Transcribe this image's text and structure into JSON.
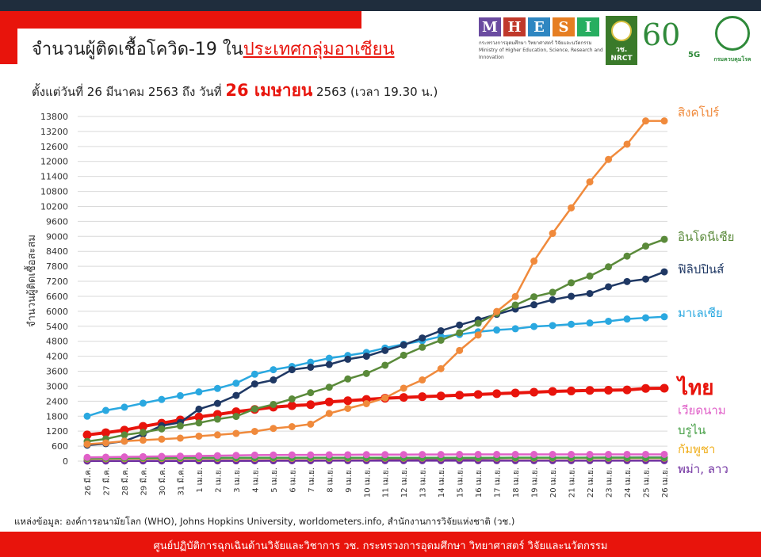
{
  "header": {
    "title_prefix": "จำนวนผู้ติดเชื้อโควิด-19 ใน",
    "title_highlight": "ประเทศกลุ่มอาเซียน",
    "subtitle_prefix": "ตั้งแต่วันที่ 26 มีนาคม 2563 ถึง วันที่",
    "subtitle_date": "26 เมษายน",
    "subtitle_suffix": "2563 (เวลา 19.30 น.)"
  },
  "logos": {
    "mhesi_letters": [
      "M",
      "H",
      "E",
      "S",
      "I"
    ],
    "mhesi_colors": [
      "#6a4ba0",
      "#c0392b",
      "#2e86c1",
      "#e67e22",
      "#27ae60"
    ],
    "mhesi_caption": "กระทรวงการอุดมศึกษา วิทยาศาสตร์ วิจัยและนวัตกรรม Ministry of Higher Education, Science, Research and Innovation",
    "nrct_text": "วช. NRCT",
    "sixty": "60",
    "fiveg": "5G",
    "moph_text": "กรมควบคุมโรค"
  },
  "source": "แหล่งข้อมูล: องค์การอนามัยโลก (WHO), Johns Hopkins University, worldometers.info, สำนักงานการวิจัยแห่งชาติ (วช.)",
  "footer": "ศูนย์ปฏิบัติการฉุกเฉินด้านวิจัยและวิชาการ   วช.   กระทรวงการอุดมศึกษา วิทยาศาสตร์ วิจัยและนวัตกรรม",
  "chart_data": {
    "type": "line",
    "ylabel": "จำนวนผู้ติดเชื้อสะสม",
    "ylim": [
      0,
      13800
    ],
    "yticks": [
      0,
      600,
      1200,
      1800,
      2400,
      3000,
      3600,
      4200,
      4800,
      5400,
      6000,
      6600,
      7200,
      7800,
      8400,
      9000,
      9600,
      10200,
      10800,
      11400,
      12000,
      12600,
      13200,
      13800
    ],
    "grid": true,
    "categories": [
      "26 มี.ค.",
      "27 มี.ค.",
      "28 มี.ค.",
      "29 มี.ค.",
      "30 มี.ค.",
      "31 มี.ค.",
      "1 เม.ย.",
      "2 เม.ย.",
      "3 เม.ย.",
      "4 เม.ย.",
      "5 เม.ย.",
      "6 เม.ย.",
      "7 เม.ย.",
      "8 เม.ย.",
      "9 เม.ย.",
      "10 เม.ย.",
      "11 เม.ย.",
      "12 เม.ย.",
      "13 เม.ย.",
      "14 เม.ย.",
      "15 เม.ย.",
      "16 เม.ย.",
      "17 เม.ย.",
      "18 เม.ย.",
      "19 เม.ย.",
      "20 เม.ย.",
      "21 เม.ย.",
      "22 เม.ย.",
      "23 เม.ย.",
      "24 เม.ย.",
      "25 เม.ย.",
      "26 เม.ย."
    ],
    "series": [
      {
        "name": "สิงคโปร์",
        "color": "#f08a3c",
        "values": [
          680,
          730,
          800,
          840,
          880,
          920,
          1000,
          1050,
          1110,
          1190,
          1310,
          1380,
          1480,
          1910,
          2110,
          2300,
          2530,
          2920,
          3250,
          3700,
          4430,
          5050,
          5990,
          6590,
          8010,
          9120,
          10140,
          11180,
          12080,
          12690,
          13620,
          13620
        ]
      },
      {
        "name": "อินโดนีเซีย",
        "color": "#5a8a3a",
        "values": [
          790,
          890,
          1050,
          1150,
          1290,
          1410,
          1530,
          1680,
          1790,
          2090,
          2270,
          2490,
          2740,
          2960,
          3290,
          3510,
          3840,
          4240,
          4560,
          4840,
          5140,
          5520,
          5920,
          6250,
          6580,
          6760,
          7140,
          7410,
          7780,
          8210,
          8610,
          8880
        ]
      },
      {
        "name": "ฟิลิปปินส์",
        "color": "#1f3864",
        "values": [
          640,
          700,
          800,
          1080,
          1420,
          1550,
          2080,
          2310,
          2630,
          3090,
          3250,
          3660,
          3760,
          3870,
          4080,
          4200,
          4430,
          4650,
          4930,
          5220,
          5450,
          5660,
          5880,
          6090,
          6260,
          6460,
          6600,
          6710,
          6980,
          7190,
          7290,
          7580
        ]
      },
      {
        "name": "มาเลเซีย",
        "color": "#2aa8e0",
        "values": [
          1800,
          2030,
          2160,
          2320,
          2470,
          2620,
          2770,
          2910,
          3120,
          3480,
          3660,
          3790,
          3960,
          4120,
          4230,
          4350,
          4530,
          4680,
          4820,
          4990,
          5070,
          5180,
          5250,
          5300,
          5390,
          5430,
          5480,
          5530,
          5600,
          5690,
          5740,
          5780
        ]
      },
      {
        "name": "ไทย",
        "color": "#e8140c",
        "values": [
          1050,
          1140,
          1240,
          1390,
          1520,
          1650,
          1770,
          1870,
          1980,
          2070,
          2160,
          2220,
          2260,
          2370,
          2420,
          2470,
          2520,
          2550,
          2580,
          2610,
          2640,
          2670,
          2700,
          2730,
          2760,
          2790,
          2810,
          2830,
          2840,
          2850,
          2910,
          2920
        ]
      },
      {
        "name": "เวียดนาม",
        "color": "#e060c8",
        "values": [
          150,
          160,
          170,
          180,
          190,
          200,
          210,
          220,
          230,
          240,
          245,
          250,
          250,
          255,
          255,
          260,
          260,
          262,
          265,
          265,
          268,
          268,
          268,
          268,
          268,
          268,
          268,
          268,
          268,
          270,
          270,
          270
        ]
      },
      {
        "name": "บรูไน",
        "color": "#48a048",
        "values": [
          110,
          115,
          120,
          125,
          125,
          130,
          130,
          130,
          135,
          135,
          135,
          135,
          135,
          135,
          135,
          135,
          135,
          136,
          136,
          136,
          136,
          136,
          136,
          138,
          138,
          138,
          138,
          138,
          138,
          138,
          138,
          138
        ]
      },
      {
        "name": "กัมพูชา",
        "color": "#f0b020",
        "values": [
          90,
          95,
          100,
          105,
          105,
          110,
          110,
          112,
          114,
          114,
          115,
          115,
          115,
          117,
          118,
          118,
          119,
          120,
          122,
          122,
          122,
          122,
          122,
          122,
          122,
          122,
          122,
          122,
          122,
          122,
          122,
          122
        ]
      },
      {
        "name": "พม่า",
        "color": "#7030a0",
        "values": [
          5,
          8,
          8,
          10,
          10,
          15,
          15,
          20,
          20,
          21,
          22,
          23,
          23,
          25,
          27,
          28,
          39,
          41,
          62,
          74,
          85,
          98,
          111,
          119,
          121,
          127,
          127,
          139,
          144,
          144,
          146,
          146
        ]
      },
      {
        "name": "ลาว",
        "color": "#7030a0",
        "values": [
          6,
          6,
          8,
          8,
          9,
          9,
          10,
          11,
          11,
          12,
          15,
          16,
          16,
          18,
          19,
          19,
          19,
          19,
          19,
          19,
          19,
          19,
          19,
          19,
          19,
          19,
          19,
          19,
          19,
          19,
          19,
          19
        ]
      }
    ],
    "legend_labels": [
      {
        "text": "สิงคโปร์",
        "color": "#f08a3c",
        "size": 15,
        "series": 0
      },
      {
        "text": "อินโดนีเซีย",
        "color": "#5a8a3a",
        "size": 15,
        "series": 1
      },
      {
        "text": "ฟิลิปปินส์",
        "color": "#1f3864",
        "size": 15,
        "series": 2
      },
      {
        "text": "มาเลเซีย",
        "color": "#2aa8e0",
        "size": 15,
        "series": 3
      },
      {
        "text": "ไทย",
        "color": "#e8140c",
        "size": 26,
        "series": 4
      },
      {
        "text": "เวียดนาม",
        "color": "#e060c8",
        "size": 15,
        "series": 5
      },
      {
        "text": "บรูไน",
        "color": "#48a048",
        "size": 15,
        "series": 6
      },
      {
        "text": "กัมพูชา",
        "color": "#f0b020",
        "size": 15,
        "series": 7
      },
      {
        "text": "พม่า, ลาว",
        "color": "#7030a0",
        "size": 15,
        "series": 8
      }
    ]
  }
}
